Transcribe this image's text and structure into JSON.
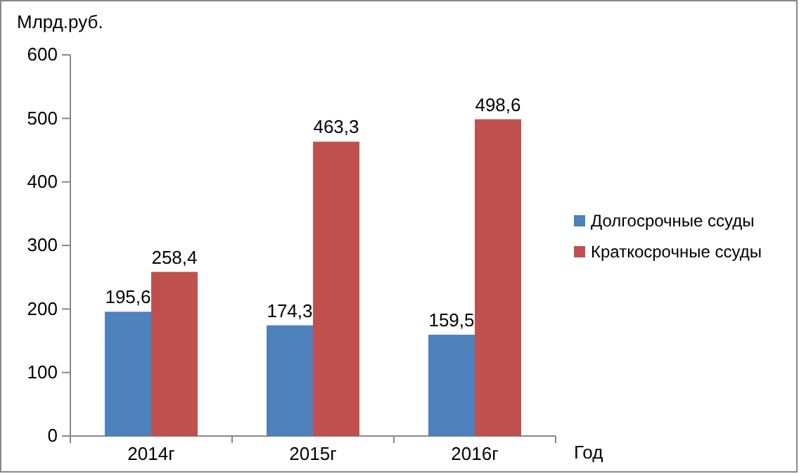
{
  "chart_data": {
    "type": "bar",
    "ylabel": "Млрд.руб.",
    "xlabel": "Год",
    "categories": [
      "2014г",
      "2015г",
      "2016г"
    ],
    "series": [
      {
        "name": "Долгосрочные ссуды",
        "color": "#4f81bd",
        "values": [
          195.6,
          174.3,
          159.5
        ],
        "value_labels": [
          "195,6",
          "174,3",
          "159,5"
        ]
      },
      {
        "name": "Краткосрочные ссуды",
        "color": "#c0504d",
        "values": [
          258.4,
          463.3,
          498.6
        ],
        "value_labels": [
          "258,4",
          "463,3",
          "498,6"
        ]
      }
    ],
    "ylim": [
      0,
      600
    ],
    "yticks": [
      0,
      100,
      200,
      300,
      400,
      500,
      600
    ],
    "grid": false,
    "legend": "right"
  }
}
